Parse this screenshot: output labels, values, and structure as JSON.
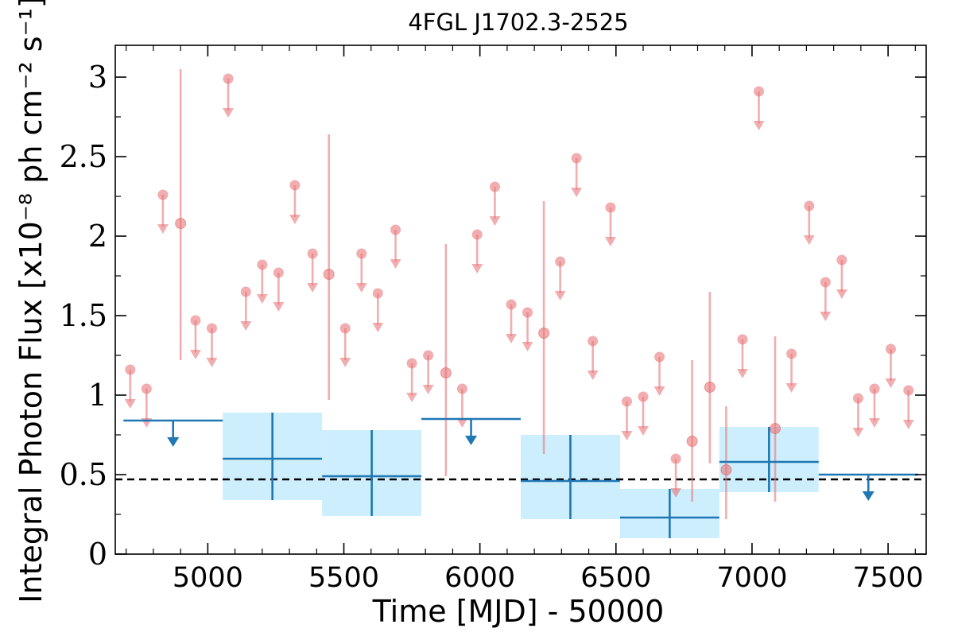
{
  "chart_data": {
    "type": "scatter",
    "title": "4FGL J1702.3-2525",
    "xlabel": "Time [MJD] - 50000",
    "ylabel": "Integral Photon Flux [x10⁻⁸ ph cm⁻² s⁻¹]",
    "xlim": [
      4660,
      7640
    ],
    "ylim": [
      0,
      3.2
    ],
    "xticks": [
      "5000",
      "5500",
      "6000",
      "6500",
      "7000",
      "7500"
    ],
    "yticks": [
      "0",
      "0.5",
      "1",
      "1.5",
      "2",
      "2.5",
      "3"
    ],
    "grid": false,
    "colors": {
      "fine_points": "#e8767a",
      "coarse_bins": "#1f77b4",
      "error_band": "#cdeefc",
      "reference_line": "#000000"
    },
    "reference_line": {
      "y": 0.47,
      "style": "dashed"
    },
    "series": [
      {
        "points": [
          {
            "x": 4900,
            "y": 2.08,
            "yerr_low": 1.22,
            "yerr_high": 3.05
          },
          {
            "x": 5445,
            "y": 1.76,
            "yerr_low": 0.97,
            "yerr_high": 2.64
          },
          {
            "x": 5875,
            "y": 1.14,
            "yerr_low": 0.49,
            "yerr_high": 1.95
          },
          {
            "x": 6235,
            "y": 1.39,
            "yerr_low": 0.63,
            "yerr_high": 2.22
          },
          {
            "x": 6780,
            "y": 0.71,
            "yerr_low": 0.33,
            "yerr_high": 1.22
          },
          {
            "x": 6845,
            "y": 1.05,
            "yerr_low": 0.57,
            "yerr_high": 1.65
          },
          {
            "x": 6905,
            "y": 0.53,
            "yerr_low": 0.22,
            "yerr_high": 0.93
          },
          {
            "x": 7085,
            "y": 0.79,
            "yerr_low": 0.33,
            "yerr_high": 1.37
          }
        ],
        "upper_limits": [
          {
            "x": 4715,
            "y": 1.16
          },
          {
            "x": 4775,
            "y": 1.04
          },
          {
            "x": 4835,
            "y": 2.26
          },
          {
            "x": 4955,
            "y": 1.47
          },
          {
            "x": 5015,
            "y": 1.42
          },
          {
            "x": 5075,
            "y": 2.99
          },
          {
            "x": 5140,
            "y": 1.65
          },
          {
            "x": 5200,
            "y": 1.82
          },
          {
            "x": 5260,
            "y": 1.77
          },
          {
            "x": 5320,
            "y": 2.32
          },
          {
            "x": 5385,
            "y": 1.89
          },
          {
            "x": 5505,
            "y": 1.42
          },
          {
            "x": 5565,
            "y": 1.89
          },
          {
            "x": 5625,
            "y": 1.64
          },
          {
            "x": 5690,
            "y": 2.04
          },
          {
            "x": 5750,
            "y": 1.2
          },
          {
            "x": 5810,
            "y": 1.25
          },
          {
            "x": 5935,
            "y": 1.04
          },
          {
            "x": 5990,
            "y": 2.01
          },
          {
            "x": 6055,
            "y": 2.31
          },
          {
            "x": 6115,
            "y": 1.57
          },
          {
            "x": 6175,
            "y": 1.52
          },
          {
            "x": 6295,
            "y": 1.84
          },
          {
            "x": 6355,
            "y": 2.49
          },
          {
            "x": 6415,
            "y": 1.34
          },
          {
            "x": 6480,
            "y": 2.18
          },
          {
            "x": 6540,
            "y": 0.96
          },
          {
            "x": 6600,
            "y": 0.99
          },
          {
            "x": 6660,
            "y": 1.24
          },
          {
            "x": 6720,
            "y": 0.6
          },
          {
            "x": 6965,
            "y": 1.35
          },
          {
            "x": 7025,
            "y": 2.91
          },
          {
            "x": 7145,
            "y": 1.26
          },
          {
            "x": 7210,
            "y": 2.19
          },
          {
            "x": 7270,
            "y": 1.71
          },
          {
            "x": 7330,
            "y": 1.85
          },
          {
            "x": 7390,
            "y": 0.98
          },
          {
            "x": 7450,
            "y": 1.04
          },
          {
            "x": 7510,
            "y": 1.29
          },
          {
            "x": 7575,
            "y": 1.03
          }
        ]
      },
      {
        "bins": [
          {
            "x0": 4690,
            "x1": 5055,
            "y": 0.84,
            "upper_limit": true
          },
          {
            "x0": 5055,
            "x1": 5420,
            "y": 0.6,
            "ylow": 0.34,
            "yhigh": 0.89,
            "upper_limit": false
          },
          {
            "x0": 5420,
            "x1": 5785,
            "y": 0.49,
            "ylow": 0.24,
            "yhigh": 0.78,
            "upper_limit": false
          },
          {
            "x0": 5785,
            "x1": 6150,
            "y": 0.85,
            "upper_limit": true
          },
          {
            "x0": 6150,
            "x1": 6515,
            "y": 0.46,
            "ylow": 0.22,
            "yhigh": 0.75,
            "upper_limit": false
          },
          {
            "x0": 6515,
            "x1": 6880,
            "y": 0.23,
            "ylow": 0.1,
            "yhigh": 0.41,
            "upper_limit": false
          },
          {
            "x0": 6880,
            "x1": 7245,
            "y": 0.58,
            "ylow": 0.39,
            "yhigh": 0.8,
            "upper_limit": false
          },
          {
            "x0": 7245,
            "x1": 7610,
            "y": 0.5,
            "upper_limit": true
          }
        ]
      }
    ]
  }
}
